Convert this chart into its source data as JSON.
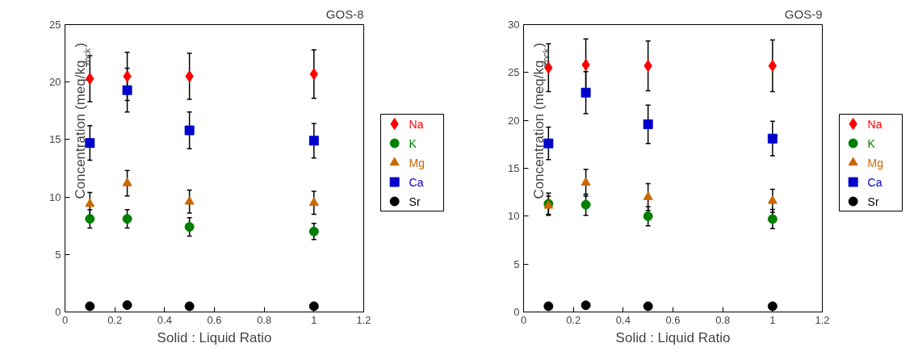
{
  "chart_data": [
    {
      "type": "scatter",
      "title": "GOS-8",
      "xlabel": "Solid : Liquid Ratio",
      "ylabel": "Concentration (meq/kg$_{rock}$)",
      "x": [
        0.1,
        0.25,
        0.5,
        1
      ],
      "xlim": [
        0,
        1.2
      ],
      "xticks": [
        0,
        0.2,
        0.4,
        0.6,
        0.8,
        1,
        1.2
      ],
      "ylim": [
        0,
        25
      ],
      "yticks": [
        0,
        5,
        10,
        15,
        20,
        25
      ],
      "grid": false,
      "legend": "right",
      "series": [
        {
          "name": "Na",
          "color": "#ff0000",
          "marker": "diamond",
          "values": [
            20.3,
            20.5,
            20.5,
            20.7
          ],
          "errors": [
            2.0,
            2.1,
            2.0,
            2.1
          ]
        },
        {
          "name": "K",
          "color": "#008000",
          "marker": "circle",
          "values": [
            8.1,
            8.1,
            7.4,
            7.0
          ],
          "errors": [
            0.8,
            0.8,
            0.8,
            0.7
          ]
        },
        {
          "name": "Mg",
          "color": "#cc6600",
          "marker": "triangle",
          "values": [
            9.4,
            11.2,
            9.6,
            9.5
          ],
          "errors": [
            1.0,
            1.1,
            1.0,
            1.0
          ]
        },
        {
          "name": "Ca",
          "color": "#0000cc",
          "marker": "square",
          "values": [
            14.7,
            19.3,
            15.8,
            14.9
          ],
          "errors": [
            1.5,
            1.9,
            1.6,
            1.5
          ]
        },
        {
          "name": "Sr",
          "color": "#000000",
          "marker": "circle",
          "values": [
            0.5,
            0.6,
            0.5,
            0.5
          ]
        }
      ]
    },
    {
      "type": "scatter",
      "title": "GOS-9",
      "xlabel": "Solid : Liquid Ratio",
      "ylabel": "Concentration (meq/kg$_{rock}$)",
      "x": [
        0.1,
        0.25,
        0.5,
        1
      ],
      "xlim": [
        0,
        1.2
      ],
      "xticks": [
        0,
        0.2,
        0.4,
        0.6,
        0.8,
        1,
        1.2
      ],
      "ylim": [
        0,
        30
      ],
      "yticks": [
        0,
        5,
        10,
        15,
        20,
        25,
        30
      ],
      "grid": false,
      "legend": "right",
      "series": [
        {
          "name": "Na",
          "color": "#ff0000",
          "marker": "diamond",
          "values": [
            25.5,
            25.8,
            25.7,
            25.7
          ],
          "errors": [
            2.5,
            2.7,
            2.6,
            2.7
          ]
        },
        {
          "name": "K",
          "color": "#008000",
          "marker": "circle",
          "values": [
            11.3,
            11.2,
            10.0,
            9.7
          ],
          "errors": [
            1.1,
            1.1,
            1.0,
            1.0
          ]
        },
        {
          "name": "Mg",
          "color": "#cc6600",
          "marker": "triangle",
          "values": [
            11.1,
            13.5,
            12.0,
            11.6
          ],
          "errors": [
            1.0,
            1.4,
            1.4,
            1.2
          ]
        },
        {
          "name": "Ca",
          "color": "#0000cc",
          "marker": "square",
          "values": [
            17.6,
            22.9,
            19.6,
            18.1
          ],
          "errors": [
            1.7,
            2.2,
            2.0,
            1.8
          ]
        },
        {
          "name": "Sr",
          "color": "#000000",
          "marker": "circle",
          "values": [
            0.6,
            0.7,
            0.6,
            0.6
          ]
        }
      ]
    }
  ]
}
